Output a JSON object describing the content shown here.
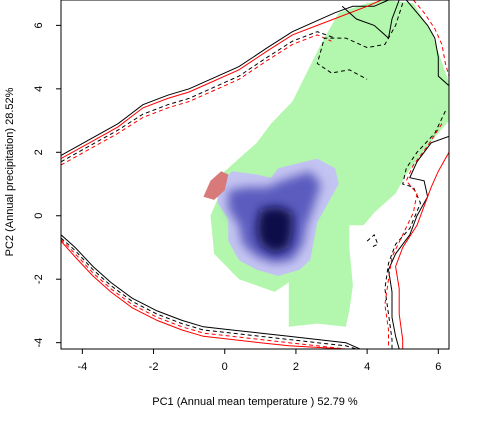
{
  "chart_data": {
    "type": "contour",
    "xlabel": "PC1 (Annual mean temperature ) 52.79 %",
    "ylabel": "PC2 (Annual precipitation) 28.52%",
    "xlim": [
      -4.6,
      6.3
    ],
    "ylim": [
      -4.2,
      6.8
    ],
    "x_ticks": [
      -4,
      -2,
      0,
      2,
      4,
      6
    ],
    "y_ticks": [
      -4,
      -2,
      0,
      2,
      4,
      6
    ],
    "x_tick_labels": [
      "-4",
      "-2",
      "0",
      "2",
      "4",
      "6"
    ],
    "y_tick_labels": [
      "-4",
      "-2",
      "0",
      "2",
      "4",
      "6"
    ],
    "colors": {
      "green_area": "#b3f7ae",
      "blue_core": "#0a0a4a",
      "blue_mid": "#5b5bbf",
      "blue_edge": "#c4c4f2",
      "red_patch": "#d87a7a",
      "line_black": "#000000",
      "line_red": "#ff0000"
    },
    "regions": [
      {
        "kind": "green",
        "points": [
          [
            3.2,
            6.4
          ],
          [
            4.0,
            6.7
          ],
          [
            4.5,
            6.8
          ],
          [
            5.3,
            6.7
          ],
          [
            5.8,
            5.8
          ],
          [
            6.3,
            4.2
          ],
          [
            6.3,
            3.0
          ],
          [
            5.7,
            2.2
          ],
          [
            5.1,
            1.3
          ],
          [
            4.8,
            0.7
          ],
          [
            4.2,
            0.1
          ],
          [
            3.9,
            -0.3
          ],
          [
            3.5,
            -0.3
          ],
          [
            3.5,
            -1.0
          ],
          [
            3.6,
            -2.2
          ],
          [
            3.5,
            -3.0
          ],
          [
            3.4,
            -3.5
          ],
          [
            2.6,
            -3.4
          ],
          [
            1.8,
            -3.5
          ],
          [
            1.8,
            -2.1
          ],
          [
            1.4,
            -2.4
          ],
          [
            0.4,
            -2.0
          ],
          [
            -0.3,
            -1.2
          ],
          [
            -0.4,
            0.0
          ],
          [
            -0.1,
            0.8
          ],
          [
            -0.1,
            1.3
          ],
          [
            0.3,
            1.7
          ],
          [
            0.9,
            2.3
          ],
          [
            1.3,
            2.9
          ],
          [
            1.9,
            3.6
          ],
          [
            2.3,
            4.5
          ],
          [
            2.7,
            5.4
          ],
          [
            3.2,
            6.4
          ]
        ]
      },
      {
        "kind": "blue_edge",
        "points": [
          [
            -0.2,
            0.9
          ],
          [
            0.2,
            1.4
          ],
          [
            0.9,
            1.3
          ],
          [
            1.3,
            1.2
          ],
          [
            1.5,
            1.5
          ],
          [
            2.6,
            1.8
          ],
          [
            3.1,
            1.5
          ],
          [
            3.2,
            1.0
          ],
          [
            2.9,
            0.4
          ],
          [
            2.6,
            -0.2
          ],
          [
            2.5,
            -0.8
          ],
          [
            2.4,
            -1.4
          ],
          [
            2.1,
            -1.7
          ],
          [
            1.5,
            -1.9
          ],
          [
            0.9,
            -1.7
          ],
          [
            0.4,
            -1.4
          ],
          [
            0.1,
            -0.8
          ],
          [
            0.1,
            -0.1
          ],
          [
            -0.2,
            0.4
          ],
          [
            -0.2,
            0.9
          ]
        ]
      },
      {
        "kind": "blue_mid",
        "points": [
          [
            0.1,
            0.8
          ],
          [
            0.6,
            0.9
          ],
          [
            1.2,
            0.9
          ],
          [
            1.6,
            1.1
          ],
          [
            2.4,
            1.4
          ],
          [
            2.7,
            1.0
          ],
          [
            2.5,
            0.3
          ],
          [
            2.3,
            -0.3
          ],
          [
            2.2,
            -0.9
          ],
          [
            1.9,
            -1.4
          ],
          [
            1.4,
            -1.5
          ],
          [
            0.9,
            -1.3
          ],
          [
            0.5,
            -0.9
          ],
          [
            0.4,
            -0.3
          ],
          [
            0.1,
            0.2
          ],
          [
            0.1,
            0.8
          ]
        ]
      },
      {
        "kind": "blue_core",
        "points": [
          [
            1.0,
            0.2
          ],
          [
            1.5,
            0.3
          ],
          [
            1.9,
            0.1
          ],
          [
            1.9,
            -0.5
          ],
          [
            1.8,
            -1.0
          ],
          [
            1.4,
            -1.2
          ],
          [
            1.0,
            -0.9
          ],
          [
            0.9,
            -0.4
          ],
          [
            1.0,
            0.2
          ]
        ]
      },
      {
        "kind": "red",
        "points": [
          [
            -0.6,
            0.6
          ],
          [
            -0.4,
            1.1
          ],
          [
            -0.1,
            1.4
          ],
          [
            0.1,
            1.3
          ],
          [
            0.0,
            0.8
          ],
          [
            -0.3,
            0.5
          ],
          [
            -0.6,
            0.6
          ]
        ]
      }
    ],
    "lines": [
      {
        "color": "black",
        "dash": false,
        "points": [
          [
            -4.6,
            1.9
          ],
          [
            -3.8,
            2.4
          ],
          [
            -3.0,
            2.9
          ],
          [
            -2.3,
            3.5
          ],
          [
            -1.6,
            3.8
          ],
          [
            -1.0,
            4.0
          ],
          [
            -0.4,
            4.3
          ],
          [
            0.4,
            4.7
          ],
          [
            1.2,
            5.3
          ],
          [
            1.9,
            5.8
          ],
          [
            2.5,
            6.1
          ],
          [
            3.1,
            6.4
          ],
          [
            3.6,
            6.6
          ],
          [
            4.2,
            6.6
          ],
          [
            4.6,
            6.8
          ]
        ]
      },
      {
        "color": "red",
        "dash": false,
        "points": [
          [
            -4.6,
            1.8
          ],
          [
            -3.8,
            2.3
          ],
          [
            -3.0,
            2.8
          ],
          [
            -2.3,
            3.4
          ],
          [
            -1.6,
            3.7
          ],
          [
            -1.0,
            3.9
          ],
          [
            -0.4,
            4.2
          ],
          [
            0.4,
            4.6
          ],
          [
            1.2,
            5.2
          ],
          [
            1.9,
            5.7
          ],
          [
            2.6,
            6.0
          ],
          [
            3.3,
            6.3
          ],
          [
            4.0,
            6.6
          ],
          [
            4.4,
            6.8
          ]
        ]
      },
      {
        "color": "black",
        "dash": true,
        "points": [
          [
            -4.6,
            1.7
          ],
          [
            -3.8,
            2.2
          ],
          [
            -3.0,
            2.7
          ],
          [
            -2.3,
            3.2
          ],
          [
            -1.6,
            3.5
          ],
          [
            -1.0,
            3.7
          ],
          [
            -0.4,
            4.0
          ],
          [
            0.4,
            4.4
          ],
          [
            1.2,
            5.0
          ],
          [
            1.9,
            5.5
          ],
          [
            2.6,
            5.8
          ],
          [
            3.1,
            5.6
          ]
        ]
      },
      {
        "color": "red",
        "dash": true,
        "points": [
          [
            -4.6,
            1.6
          ],
          [
            -3.8,
            2.1
          ],
          [
            -3.0,
            2.6
          ],
          [
            -2.3,
            3.1
          ],
          [
            -1.6,
            3.4
          ],
          [
            -1.0,
            3.6
          ],
          [
            -0.4,
            3.9
          ],
          [
            0.4,
            4.3
          ],
          [
            1.2,
            4.9
          ],
          [
            1.9,
            5.4
          ],
          [
            2.6,
            5.7
          ],
          [
            3.0,
            5.5
          ]
        ]
      },
      {
        "color": "black",
        "dash": false,
        "points": [
          [
            3.3,
            6.6
          ],
          [
            3.7,
            6.2
          ],
          [
            4.2,
            6.0
          ],
          [
            4.6,
            5.6
          ],
          [
            4.7,
            6.2
          ],
          [
            4.9,
            6.8
          ]
        ]
      },
      {
        "color": "black",
        "dash": false,
        "points": [
          [
            5.1,
            6.8
          ],
          [
            5.4,
            6.4
          ],
          [
            5.7,
            6.0
          ],
          [
            5.9,
            5.6
          ],
          [
            6.0,
            5.0
          ],
          [
            6.0,
            4.4
          ],
          [
            6.3,
            4.1
          ]
        ]
      },
      {
        "color": "red",
        "dash": true,
        "points": [
          [
            5.3,
            6.8
          ],
          [
            5.6,
            6.4
          ],
          [
            5.9,
            5.9
          ],
          [
            6.1,
            5.4
          ],
          [
            6.2,
            4.8
          ],
          [
            6.3,
            4.4
          ]
        ]
      },
      {
        "color": "black",
        "dash": true,
        "points": [
          [
            5.0,
            6.7
          ],
          [
            4.8,
            6.0
          ],
          [
            4.5,
            5.4
          ],
          [
            4.0,
            5.3
          ],
          [
            3.4,
            5.6
          ],
          [
            2.8,
            5.6
          ],
          [
            2.6,
            4.8
          ],
          [
            3.0,
            4.5
          ],
          [
            3.5,
            4.6
          ],
          [
            4.0,
            4.3
          ]
        ]
      },
      {
        "color": "black",
        "dash": false,
        "points": [
          [
            6.3,
            2.5
          ],
          [
            5.8,
            2.3
          ],
          [
            5.4,
            1.7
          ],
          [
            5.2,
            1.2
          ],
          [
            5.6,
            1.1
          ],
          [
            5.7,
            0.6
          ],
          [
            5.4,
            0.0
          ],
          [
            5.2,
            -0.6
          ],
          [
            4.8,
            -1.2
          ],
          [
            4.6,
            -1.7
          ],
          [
            4.7,
            -2.4
          ],
          [
            4.7,
            -3.2
          ],
          [
            4.8,
            -3.8
          ],
          [
            4.9,
            -4.2
          ]
        ]
      },
      {
        "color": "black",
        "dash": true,
        "points": [
          [
            6.2,
            3.3
          ],
          [
            5.9,
            2.6
          ],
          [
            5.4,
            2.0
          ],
          [
            5.1,
            1.5
          ],
          [
            5.0,
            1.0
          ],
          [
            5.3,
            0.9
          ],
          [
            5.5,
            0.4
          ],
          [
            5.2,
            -0.4
          ],
          [
            4.8,
            -0.9
          ],
          [
            4.6,
            -1.5
          ],
          [
            4.5,
            -2.3
          ],
          [
            4.6,
            -3.1
          ],
          [
            4.7,
            -3.9
          ],
          [
            4.7,
            -4.2
          ]
        ]
      },
      {
        "color": "red",
        "dash": false,
        "points": [
          [
            6.3,
            2.0
          ],
          [
            6.0,
            1.4
          ],
          [
            5.8,
            0.9
          ],
          [
            5.6,
            0.3
          ],
          [
            5.4,
            -0.3
          ],
          [
            5.0,
            -1.0
          ],
          [
            4.8,
            -1.6
          ],
          [
            4.9,
            -2.3
          ],
          [
            4.9,
            -3.1
          ],
          [
            5.0,
            -3.9
          ],
          [
            5.0,
            -4.2
          ]
        ]
      },
      {
        "color": "red",
        "dash": true,
        "points": [
          [
            6.1,
            2.9
          ],
          [
            5.7,
            2.2
          ],
          [
            5.3,
            1.6
          ],
          [
            5.1,
            1.1
          ],
          [
            5.4,
            0.7
          ],
          [
            5.3,
            0.1
          ],
          [
            5.0,
            -0.6
          ],
          [
            4.7,
            -1.3
          ],
          [
            4.6,
            -2.0
          ],
          [
            4.5,
            -2.8
          ],
          [
            4.6,
            -3.6
          ],
          [
            4.6,
            -4.2
          ]
        ]
      },
      {
        "color": "black",
        "dash": true,
        "points": [
          [
            4.0,
            -0.8
          ],
          [
            4.2,
            -0.6
          ],
          [
            4.3,
            -0.9
          ],
          [
            4.1,
            -1.0
          ]
        ]
      },
      {
        "color": "black",
        "dash": false,
        "points": [
          [
            -4.6,
            -0.6
          ],
          [
            -4.2,
            -1.0
          ],
          [
            -3.7,
            -1.6
          ],
          [
            -3.2,
            -2.1
          ],
          [
            -2.6,
            -2.6
          ],
          [
            -1.9,
            -3.0
          ],
          [
            -1.2,
            -3.3
          ],
          [
            -0.6,
            -3.5
          ],
          [
            0.2,
            -3.6
          ],
          [
            1.0,
            -3.7
          ],
          [
            1.8,
            -3.8
          ],
          [
            2.6,
            -3.9
          ],
          [
            3.4,
            -4.0
          ],
          [
            3.8,
            -4.2
          ]
        ]
      },
      {
        "color": "black",
        "dash": true,
        "points": [
          [
            -4.6,
            -0.7
          ],
          [
            -4.2,
            -1.1
          ],
          [
            -3.7,
            -1.7
          ],
          [
            -3.2,
            -2.2
          ],
          [
            -2.6,
            -2.7
          ],
          [
            -1.9,
            -3.1
          ],
          [
            -1.2,
            -3.4
          ],
          [
            -0.6,
            -3.6
          ],
          [
            0.2,
            -3.7
          ],
          [
            1.0,
            -3.8
          ],
          [
            1.8,
            -3.9
          ],
          [
            2.6,
            -4.0
          ],
          [
            3.4,
            -4.1
          ],
          [
            3.7,
            -4.2
          ]
        ]
      },
      {
        "color": "red",
        "dash": false,
        "points": [
          [
            -4.6,
            -0.8
          ],
          [
            -4.2,
            -1.3
          ],
          [
            -3.7,
            -1.9
          ],
          [
            -3.2,
            -2.4
          ],
          [
            -2.6,
            -2.9
          ],
          [
            -1.9,
            -3.3
          ],
          [
            -1.2,
            -3.6
          ],
          [
            -0.6,
            -3.8
          ],
          [
            0.2,
            -3.9
          ],
          [
            1.0,
            -4.0
          ],
          [
            1.8,
            -4.1
          ],
          [
            2.6,
            -4.15
          ],
          [
            3.4,
            -4.2
          ]
        ]
      },
      {
        "color": "red",
        "dash": true,
        "points": [
          [
            -4.6,
            -0.75
          ],
          [
            -4.2,
            -1.2
          ],
          [
            -3.7,
            -1.8
          ],
          [
            -3.2,
            -2.3
          ],
          [
            -2.6,
            -2.8
          ],
          [
            -1.9,
            -3.2
          ],
          [
            -1.2,
            -3.5
          ],
          [
            -0.6,
            -3.7
          ],
          [
            0.2,
            -3.8
          ],
          [
            1.0,
            -3.9
          ],
          [
            1.8,
            -4.0
          ],
          [
            2.6,
            -4.1
          ],
          [
            3.4,
            -4.2
          ]
        ]
      }
    ]
  }
}
